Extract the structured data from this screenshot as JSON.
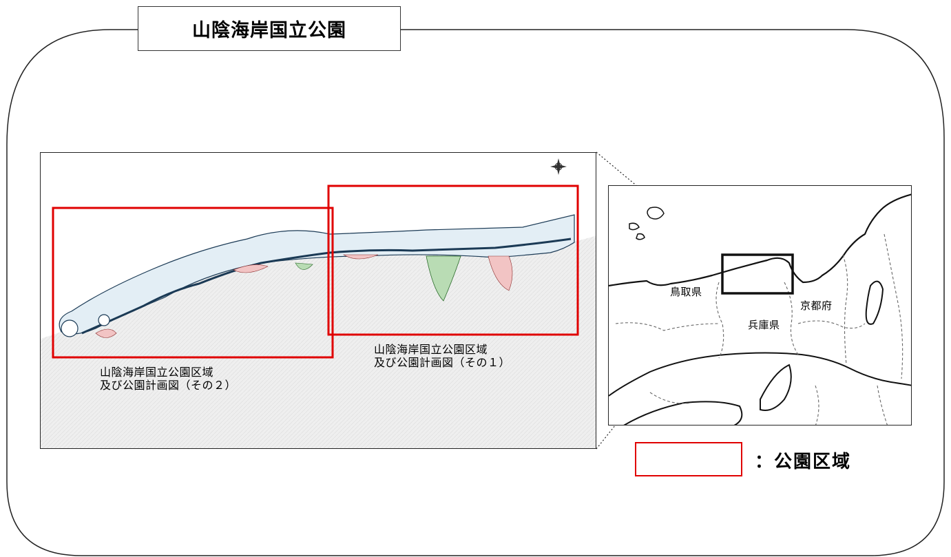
{
  "title": "山陰海岸国立公園",
  "main_map": {
    "label_part2": [
      "山陰海岸国立公園区域",
      "及び公園計画図（その２）"
    ],
    "label_part1": [
      "山陰海岸国立公園区域",
      "及び公園計画図（その１）"
    ],
    "compass_icon": "compass-rose-icon"
  },
  "inset_map": {
    "prefectures": [
      "鳥取県",
      "兵庫県",
      "京都府"
    ]
  },
  "legend": {
    "label": "：公園区域",
    "color": "#e00000"
  },
  "colors": {
    "park_boundary": "#e00000",
    "coastline": "#1b3a55",
    "marine_area": "#dcecf5",
    "special_zone": "#f2c4c4",
    "green_zone": "#b9dcb4"
  }
}
